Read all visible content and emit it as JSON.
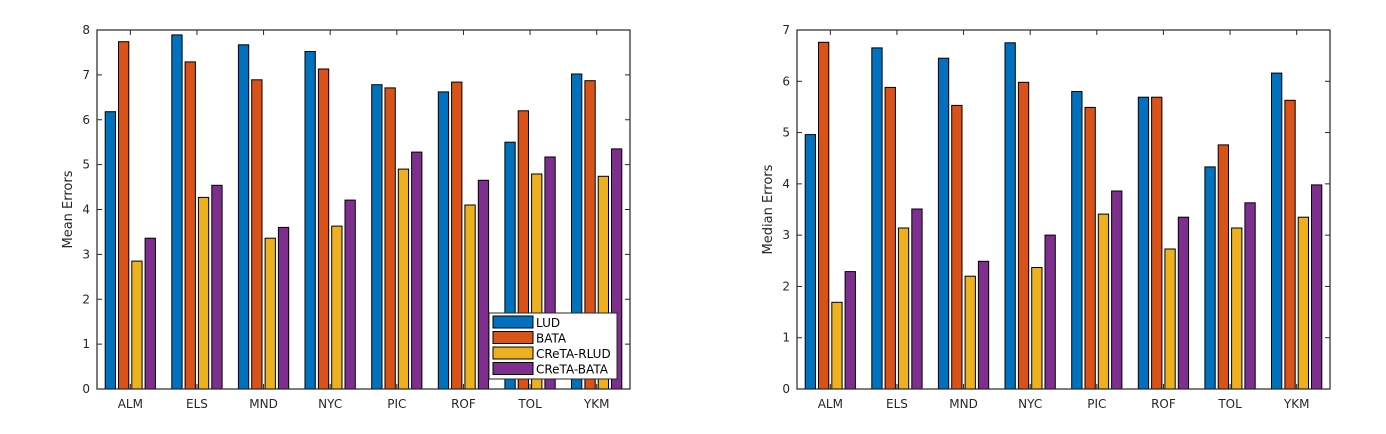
{
  "chart_data": [
    {
      "type": "bar",
      "title": "",
      "xlabel": "",
      "ylabel": "Mean Errors",
      "ylim": [
        0,
        8
      ],
      "yticks": [
        0,
        1,
        2,
        3,
        4,
        5,
        6,
        7,
        8
      ],
      "grid": false,
      "legend": "bottom-right",
      "categories": [
        "ALM",
        "ELS",
        "MND",
        "NYC",
        "PIC",
        "ROF",
        "TOL",
        "YKM"
      ],
      "series": [
        {
          "name": "LUD",
          "color": "#0072BD",
          "values": [
            6.18,
            7.89,
            7.67,
            7.52,
            6.78,
            6.62,
            5.5,
            7.02
          ]
        },
        {
          "name": "BATA",
          "color": "#D95319",
          "values": [
            7.74,
            7.29,
            6.89,
            7.13,
            6.71,
            6.84,
            6.2,
            6.87
          ]
        },
        {
          "name": "CReTA-RLUD",
          "color": "#EDB120",
          "values": [
            2.85,
            4.27,
            3.36,
            3.63,
            4.9,
            4.1,
            4.79,
            4.74
          ]
        },
        {
          "name": "CReTA-BATA",
          "color": "#7E2F8E",
          "values": [
            3.36,
            4.54,
            3.6,
            4.21,
            5.28,
            4.65,
            5.17,
            5.35
          ]
        }
      ]
    },
    {
      "type": "bar",
      "title": "",
      "xlabel": "",
      "ylabel": "Median Errors",
      "ylim": [
        0,
        7
      ],
      "yticks": [
        0,
        1,
        2,
        3,
        4,
        5,
        6,
        7
      ],
      "grid": false,
      "legend": "none",
      "categories": [
        "ALM",
        "ELS",
        "MND",
        "NYC",
        "PIC",
        "ROF",
        "TOL",
        "YKM"
      ],
      "series": [
        {
          "name": "LUD",
          "color": "#0072BD",
          "values": [
            4.96,
            6.65,
            6.45,
            6.75,
            5.8,
            5.69,
            4.33,
            6.16
          ]
        },
        {
          "name": "BATA",
          "color": "#D95319",
          "values": [
            6.76,
            5.88,
            5.53,
            5.98,
            5.49,
            5.69,
            4.76,
            5.63
          ]
        },
        {
          "name": "CReTA-RLUD",
          "color": "#EDB120",
          "values": [
            1.69,
            3.14,
            2.2,
            2.37,
            3.41,
            2.73,
            3.14,
            3.35
          ]
        },
        {
          "name": "CReTA-BATA",
          "color": "#7E2F8E",
          "values": [
            2.29,
            3.51,
            2.49,
            3.0,
            3.86,
            3.35,
            3.63,
            3.98
          ]
        }
      ]
    }
  ]
}
